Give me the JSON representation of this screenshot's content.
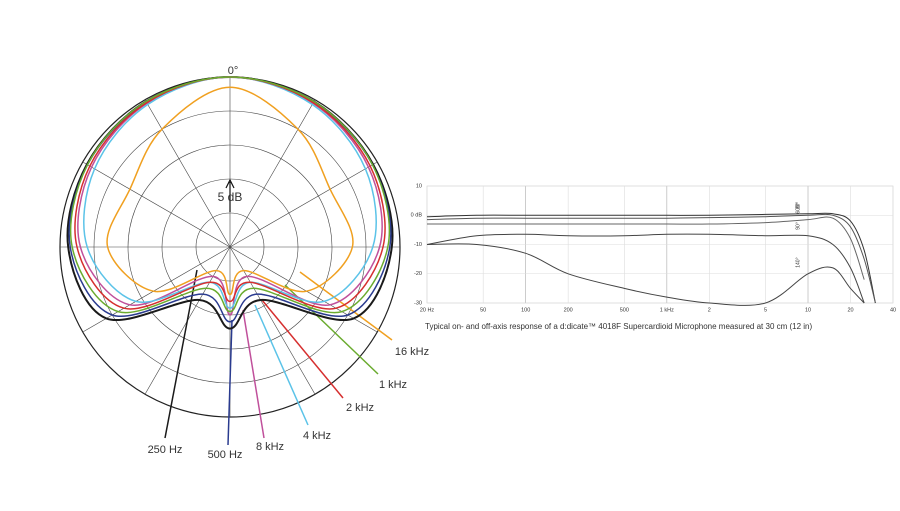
{
  "chart_data": [
    {
      "type": "polar",
      "top_label": "0°",
      "scale_label": "5 dB",
      "rlim": [
        -25,
        0
      ],
      "rticks": [
        -20,
        -15,
        -10,
        -5,
        0
      ],
      "x": [
        0,
        30,
        60,
        90,
        120,
        150,
        180,
        210,
        240,
        270,
        300,
        330,
        360
      ],
      "series": [
        {
          "name": "250 Hz",
          "color": "#1a1a1a",
          "values": [
            0,
            -0.3,
            -0.7,
            -1.2,
            -4,
            -16,
            -13,
            -16,
            -4,
            -1.2,
            -0.7,
            -0.3,
            0
          ]
        },
        {
          "name": "500 Hz",
          "color": "#2a3b8f",
          "values": [
            0,
            -0.4,
            -0.8,
            -1.5,
            -5,
            -17,
            -14,
            -17,
            -5,
            -1.5,
            -0.8,
            -0.4,
            0
          ]
        },
        {
          "name": "8 kHz",
          "color": "#c0509b",
          "values": [
            0,
            -0.6,
            -1.5,
            -3,
            -8,
            -20,
            -15,
            -20,
            -8,
            -3,
            -1.5,
            -0.6,
            0
          ]
        },
        {
          "name": "4 kHz",
          "color": "#5bc3e8",
          "values": [
            0,
            -0.8,
            -2,
            -4,
            -9,
            -19,
            -16,
            -19,
            -9,
            -4,
            -2,
            -0.8,
            0
          ]
        },
        {
          "name": "2 kHz",
          "color": "#d62f2f",
          "values": [
            0,
            -0.5,
            -1.2,
            -2.5,
            -7,
            -19,
            -17,
            -19,
            -7,
            -2.5,
            -1.2,
            -0.5,
            0
          ]
        },
        {
          "name": "1 kHz",
          "color": "#6aab2e",
          "values": [
            0,
            -0.3,
            -0.8,
            -1.8,
            -6,
            -18,
            -15.5,
            -18,
            -6,
            -1.8,
            -0.8,
            -0.3,
            0
          ]
        },
        {
          "name": "16 kHz",
          "color": "#f0a020",
          "values": [
            -1.5,
            -5,
            -8,
            -7,
            -12,
            -21,
            -18,
            -21,
            -12,
            -7,
            -8,
            -5,
            -1.5
          ]
        }
      ]
    },
    {
      "type": "line",
      "caption": "Typical on- and off-axis response of a d:dicate™ 4018F Supercardioid Microphone measured at 30 cm (12 in)",
      "log_x": true,
      "xlim": [
        20,
        40000
      ],
      "ylim": [
        -30,
        10
      ],
      "xticks": [
        {
          "value": 20,
          "label": "20 Hz"
        },
        50,
        100,
        200,
        500,
        {
          "value": 1000,
          "label": "1 kHz"
        },
        {
          "value": 2000,
          "label": "2"
        },
        {
          "value": 5000,
          "label": "5"
        },
        {
          "value": 10000,
          "label": "10"
        },
        {
          "value": 20000,
          "label": "20"
        },
        {
          "value": 40000,
          "label": "40"
        }
      ],
      "yticks": [
        10,
        {
          "value": 0,
          "label": "0 dB"
        },
        -10,
        -20,
        -30
      ],
      "x": [
        20,
        45,
        100,
        200,
        500,
        1000,
        2000,
        5000,
        10000,
        15000,
        20000,
        25000,
        30000
      ],
      "series": [
        {
          "name": "0°",
          "color": "#333333",
          "values": [
            -0.5,
            0,
            0,
            0,
            0,
            0,
            0,
            0.3,
            0.5,
            0.5,
            -2,
            -12,
            -30
          ]
        },
        {
          "name": "30°",
          "color": "#555555",
          "values": [
            -1.5,
            -1,
            -1,
            -1,
            -1,
            -1,
            -0.8,
            -0.5,
            0,
            0,
            -4,
            -15,
            -30
          ]
        },
        {
          "name": "60°",
          "color": "#666666",
          "values": [
            -3,
            -3,
            -3,
            -3,
            -3,
            -3,
            -3,
            -2.5,
            -1.5,
            -1,
            -8,
            -22,
            null
          ]
        },
        {
          "name": "90°",
          "color": "#444444",
          "values": [
            -10,
            -7,
            -6.5,
            -7,
            -7,
            -6.5,
            -6.5,
            -7,
            -7,
            -10,
            -18,
            -30,
            null
          ]
        },
        {
          "name": "140°",
          "color": "#444444",
          "values": [
            -10,
            -10,
            -13,
            -20,
            -25,
            -28,
            -30,
            -30,
            -20,
            -18,
            -25,
            -30,
            null
          ]
        }
      ]
    }
  ]
}
